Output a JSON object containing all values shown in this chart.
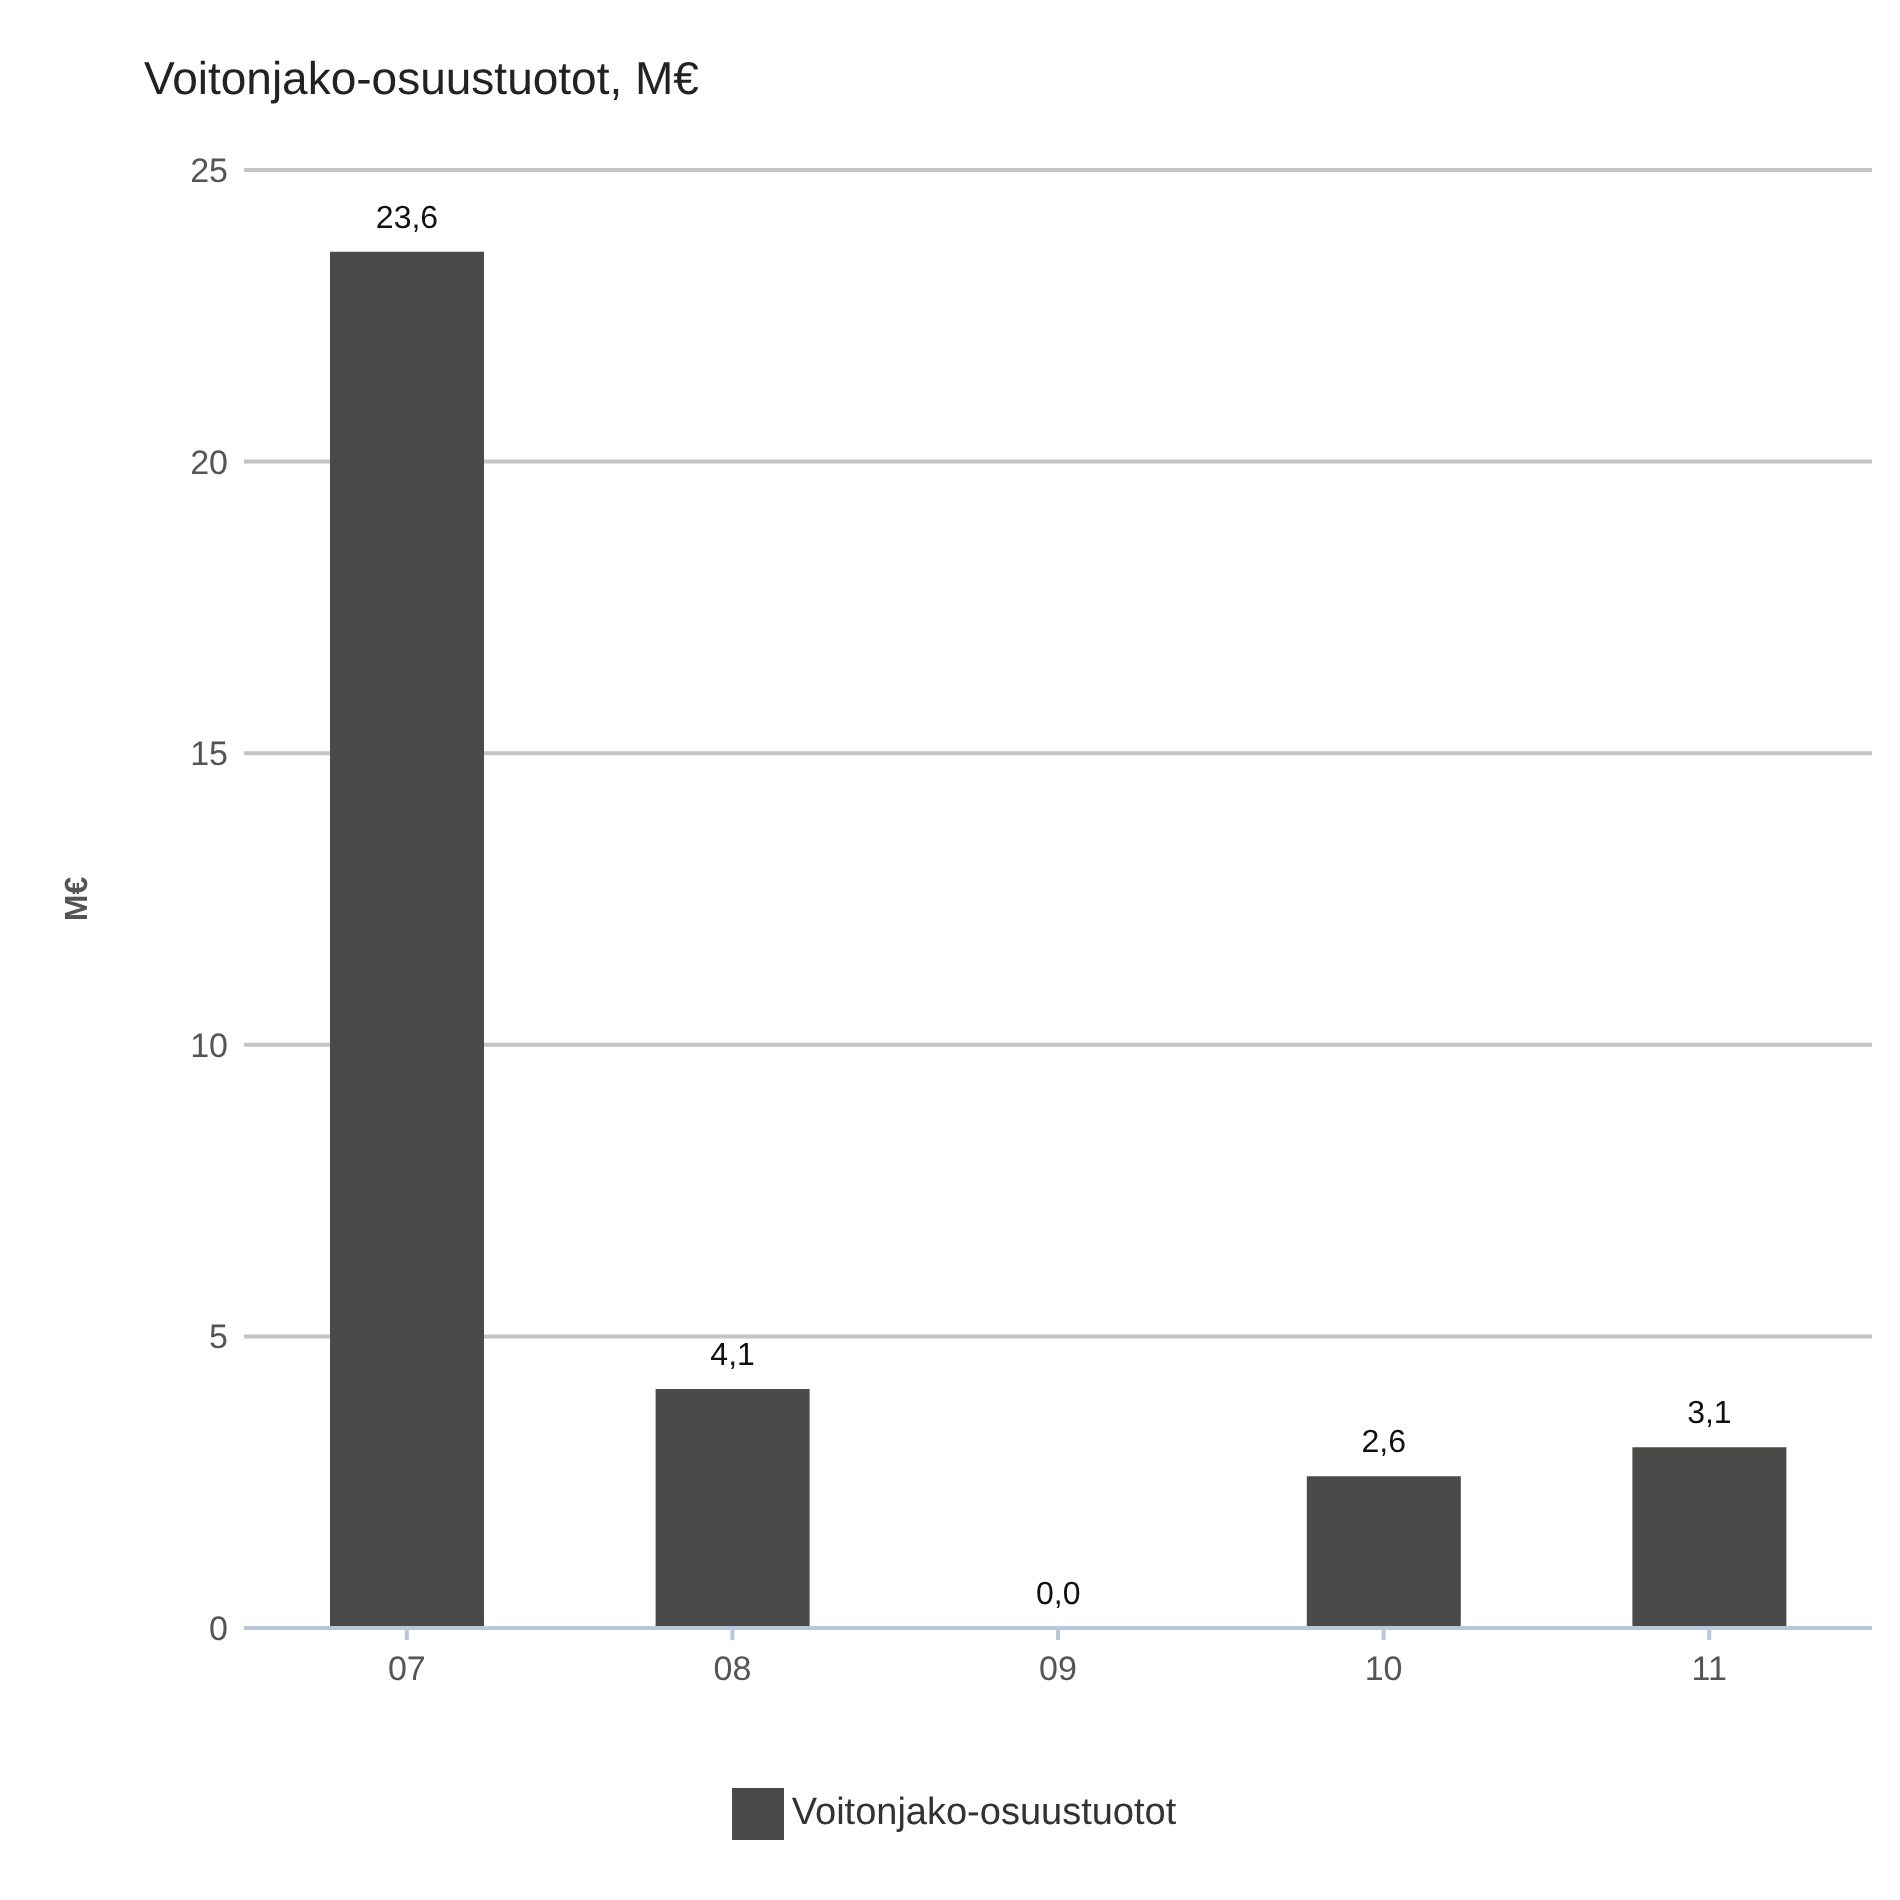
{
  "chart_data": {
    "type": "bar",
    "title": "Voitonjako-osuustuotot, M€",
    "ylabel": "M€",
    "categories": [
      "07",
      "08",
      "09",
      "10",
      "11"
    ],
    "series": [
      {
        "name": "Voitonjako-osuustuotot",
        "color": "#4a4a48",
        "values": [
          23.6,
          4.1,
          0.0,
          2.6,
          3.1
        ],
        "value_labels": [
          "23,6",
          "4,1",
          "0,0",
          "2,6",
          "3,1"
        ]
      }
    ],
    "ylim": [
      0,
      25
    ],
    "yticks": [
      0,
      5,
      10,
      15,
      20,
      25
    ],
    "grid": "y",
    "legend": "bottom"
  }
}
